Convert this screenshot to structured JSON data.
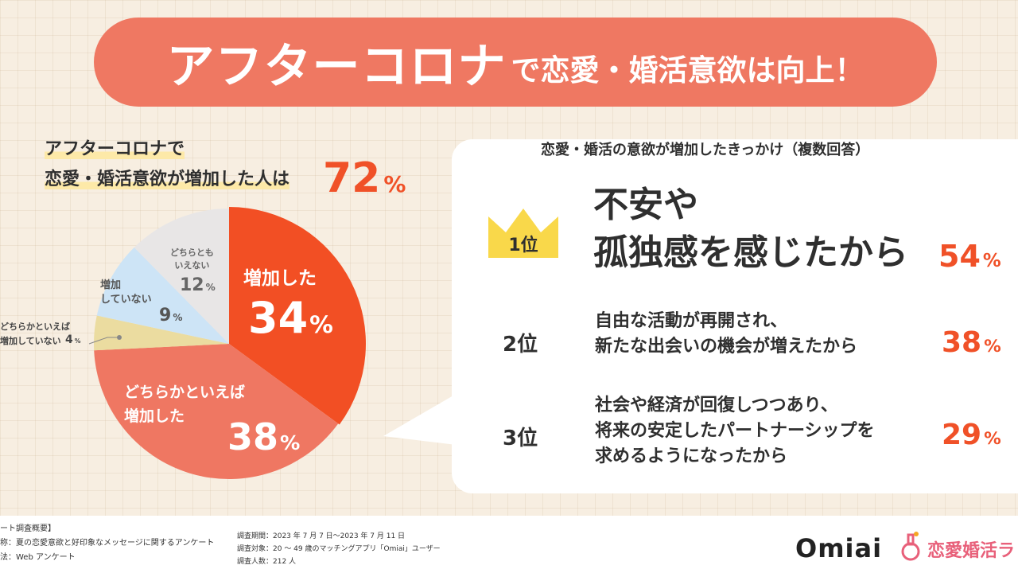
{
  "banner": {
    "title_big": "アフターコロナ",
    "title_small": "で恋愛・婚活意欲は向上！"
  },
  "headline": {
    "line1": "アフターコロナで",
    "line2": "恋愛・婚活意欲が増加した人は",
    "percent": "72",
    "percent_unit": "%"
  },
  "colors": {
    "accent": "#f05128",
    "banner": "#ef7862",
    "slice_increased": "#f24f24",
    "slice_somewhat_increased": "#ef7762",
    "slice_somewhat_not": "#ebdca0",
    "slice_not": "#cde4f6",
    "slice_neither": "#e8e6e6"
  },
  "chart_data": {
    "type": "pie",
    "slices": [
      {
        "label": "増加した",
        "value": 34
      },
      {
        "label": "どちらかといえば増加した",
        "value": 38
      },
      {
        "label": "どちらかといえば増加していない",
        "value": 4
      },
      {
        "label": "増加していない",
        "value": 9
      },
      {
        "label": "どちらともいえない",
        "value": 12
      }
    ]
  },
  "pie_labels": {
    "increased": {
      "name": "増加した",
      "value": "34",
      "unit": "%"
    },
    "somewhat_increased": {
      "name1": "どちらかといえば",
      "name2": "増加した",
      "value": "38",
      "unit": "%"
    },
    "somewhat_not": {
      "name1": "どちらかといえば",
      "name2": "増加していない",
      "value": "4",
      "unit": "%"
    },
    "not_increased": {
      "name1": "増加",
      "name2": "していない",
      "value": "9",
      "unit": "%"
    },
    "neither": {
      "name1": "どちらとも",
      "name2": "いえない",
      "value": "12",
      "unit": "%"
    }
  },
  "reasons": {
    "title": "恋愛・婚活の意欲が増加したきっかけ（複数回答）",
    "items": [
      {
        "rank": "1位",
        "line1": "不安や",
        "line2": "孤独感を感じたから",
        "line3": "",
        "percent": "54",
        "unit": "%"
      },
      {
        "rank": "2位",
        "line1": "自由な活動が再開され、",
        "line2": "新たな出会いの機会が増えたから",
        "line3": "",
        "percent": "38",
        "unit": "%"
      },
      {
        "rank": "3位",
        "line1": "社会や経済が回復しつつあり、",
        "line2": "将来の安定したパートナーシップを",
        "line3": "求めるようになったから",
        "percent": "29",
        "unit": "%"
      }
    ]
  },
  "survey": {
    "heading": "ート調査概要】",
    "name": "称：夏の恋愛意欲と好印象なメッセージに関するアンケート",
    "method": "法：Web アンケート",
    "period": "調査期間：2023 年 7 月 7 日〜2023 年 7 月 11 日",
    "target": "調査対象：20 〜 49 歳のマッチングアプリ「Omiai」ユーザー",
    "count": "調査人数：212 人"
  },
  "logos": {
    "omiai": "Omiai",
    "konkatsu": "恋愛婚活ラ"
  }
}
